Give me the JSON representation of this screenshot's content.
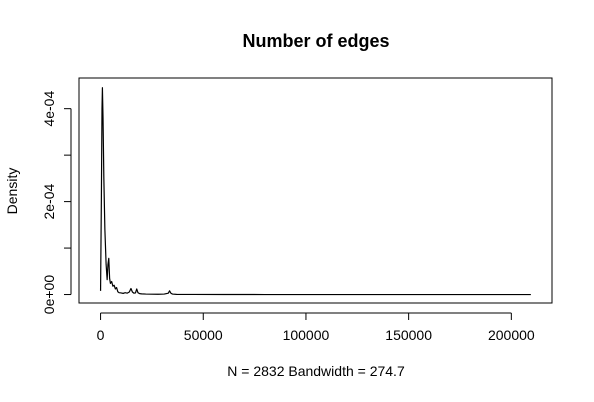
{
  "chart_data": {
    "type": "line",
    "title": "Number of edges",
    "xlabel": "N = 2832   Bandwidth = 274.7",
    "ylabel": "Density",
    "xlim": [
      -10500,
      219800
    ],
    "ylim": [
      -1.82e-05,
      0.000466
    ],
    "x_ticks": [
      {
        "value": 0,
        "label": "0"
      },
      {
        "value": 50000,
        "label": "50000"
      },
      {
        "value": 100000,
        "label": "100000"
      },
      {
        "value": 150000,
        "label": "150000"
      },
      {
        "value": 200000,
        "label": "200000"
      }
    ],
    "y_ticks": [
      {
        "value": 0,
        "label": "0e+00",
        "labeled": true
      },
      {
        "value": 0.0001,
        "label": "",
        "labeled": false
      },
      {
        "value": 0.0002,
        "label": "2e-04",
        "labeled": true
      },
      {
        "value": 0.0003,
        "label": "",
        "labeled": false
      },
      {
        "value": 0.0004,
        "label": "4e-04",
        "labeled": true
      }
    ],
    "grid": false,
    "legend": "none",
    "line_color": "#000000",
    "series": [
      {
        "x": [
          0,
          400,
          700,
          900,
          1200,
          1600,
          2100,
          2700,
          3200,
          3600,
          4000,
          4400,
          4800,
          5400,
          6000,
          6600,
          7200,
          7800,
          8400,
          9000,
          10000,
          11000,
          12000,
          13000,
          14000,
          14800,
          15500,
          16200,
          17000,
          17600,
          18200,
          19000,
          20000,
          22000,
          25000,
          28000,
          31000,
          33000,
          33600,
          34200,
          35000,
          37000,
          45000,
          60000,
          80000,
          100000,
          120000,
          150000,
          180000,
          209500
        ],
        "y": [
          8e-06,
          0.00021,
          0.0004,
          0.000445,
          0.00038,
          0.00025,
          0.00014,
          6.5e-05,
          3.2e-05,
          6.5e-05,
          7.8e-05,
          3.5e-05,
          2.4e-05,
          2.8e-05,
          1.8e-05,
          2e-05,
          1.2e-05,
          1.5e-05,
          6e-06,
          4e-06,
          3.5e-06,
          2.5e-06,
          4e-06,
          3e-06,
          5.5e-06,
          1.3e-05,
          5.5e-06,
          3e-06,
          3.5e-06,
          1.2e-05,
          4e-06,
          2e-06,
          1.5e-06,
          1e-06,
          8e-07,
          6e-07,
          1e-06,
          3e-06,
          8e-06,
          3e-06,
          1e-06,
          4e-07,
          2e-07,
          1e-07,
          0,
          0,
          0,
          0,
          0,
          0
        ]
      }
    ]
  }
}
